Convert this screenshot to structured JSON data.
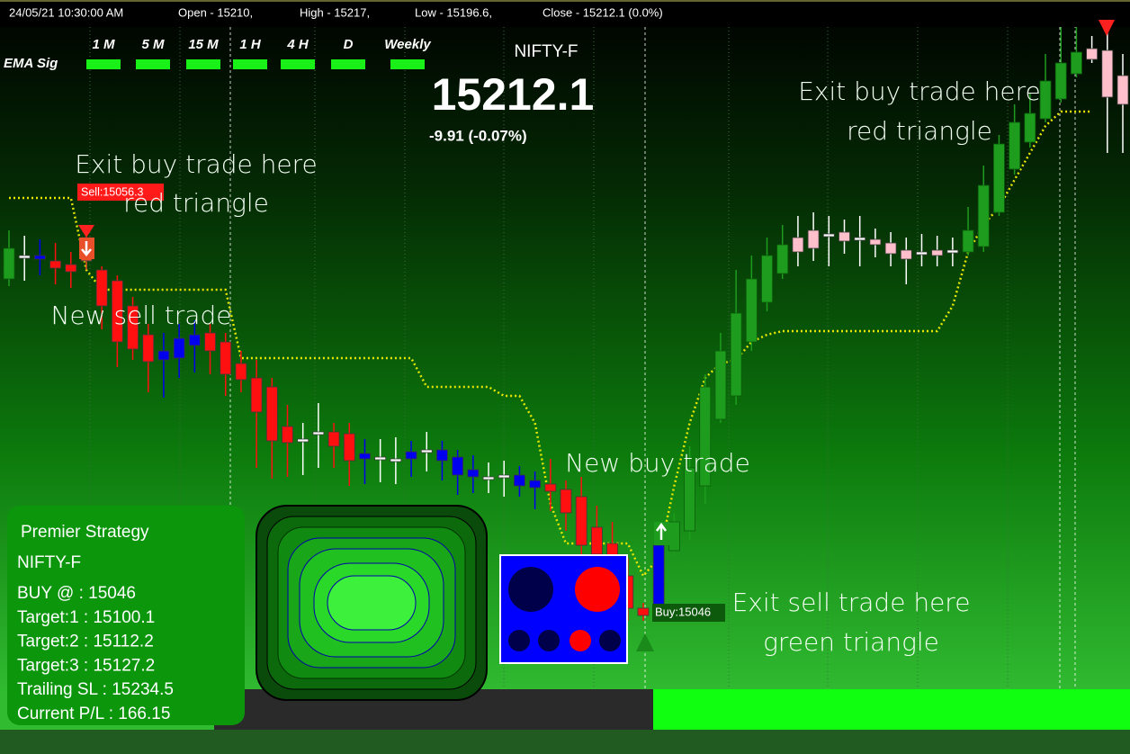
{
  "header": {
    "items": [
      "24/05/21 10:30:00 AM",
      "Open - 15210,",
      "High - 15217,",
      "Low - 15196.6,",
      "Close - 15212.1 (0.0%)"
    ]
  },
  "ema_signal": {
    "label": "EMA Sig",
    "timeframes": [
      "1 M",
      "5 M",
      "15 M",
      "1 H",
      "4 H",
      "D",
      "Weekly"
    ]
  },
  "quote": {
    "symbol": "NIFTY-F",
    "price": "15212.1",
    "change": "-9.91 (-0.07%)"
  },
  "annotations": [
    {
      "lines": [
        "Exit buy trade here",
        "red triangle"
      ]
    },
    {
      "lines": [
        "New sell trade"
      ]
    },
    {
      "lines": [
        "New buy trade"
      ]
    },
    {
      "lines": [
        "Exit sell trade here",
        "green triangle"
      ]
    },
    {
      "lines": [
        "Exit buy trade here",
        "red triangle"
      ]
    }
  ],
  "trade_labels": {
    "sell": "Sell:15056.3",
    "buy": "Buy:15046"
  },
  "strategy_panel": {
    "title": "Premier Strategy",
    "lines": [
      "NIFTY-F",
      "BUY @  : 15046",
      "Target:1 : 15100.1",
      "Target:2 : 15112.2",
      "Target:3 : 15127.2",
      "Trailing SL : 15234.5",
      "Current P/L : 166.15"
    ]
  },
  "chart_data": {
    "type": "candlestick",
    "ylim": [
      15020,
      15230
    ],
    "open": [
      15152.5,
      15158.5,
      15159,
      15157.5,
      15156.5,
      15164,
      15155,
      15152,
      15145,
      15137,
      15130,
      15130.5,
      15134,
      15137.5,
      15135,
      15129,
      15125,
      15122.5,
      15111.5,
      15107.5,
      15109.5,
      15110,
      15109.5,
      15102.5,
      15102.5,
      15102,
      15102.5,
      15104.5,
      15102,
      15098,
      15097.5,
      15097,
      15097.5,
      15095,
      15094.5,
      15095.5,
      15094,
      15092,
      15083.5,
      15079,
      15070,
      15061,
      15061,
      15077,
      15082.5,
      15095,
      15113.5,
      15120,
      15135,
      15146,
      15154,
      15164,
      15166,
      15164.5,
      15165.5,
      15163.5,
      15163.5,
      15162.5,
      15160.5,
      15159.5,
      15160.5,
      15160,
      15160,
      15161.5,
      15171,
      15183,
      15190.5,
      15197,
      15202.5,
      15209.5,
      15216.5,
      15216,
      15209
    ],
    "high": [
      15166,
      15164.5,
      15163.5,
      15162.5,
      15160,
      15167,
      15156,
      15153.5,
      15147.5,
      15140,
      15137.5,
      15140,
      15141,
      15140,
      15137.5,
      15132.5,
      15130,
      15125,
      15117.5,
      15112.5,
      15118,
      15112.5,
      15112.5,
      15108,
      15108,
      15108.5,
      15107.5,
      15110,
      15107.5,
      15105,
      15103.5,
      15101.5,
      15102,
      15100.5,
      15099,
      15102.5,
      15096.5,
      15097.5,
      15089.5,
      15085,
      15075,
      15062.5,
      15080,
      15087.5,
      15106,
      15126,
      15137.5,
      15155,
      15159,
      15164,
      15167.5,
      15170,
      15171,
      15170,
      15169,
      15170,
      15166.5,
      15165.5,
      15164,
      15165,
      15164.5,
      15164,
      15172.5,
      15184,
      15192.5,
      15201,
      15204,
      15215,
      15222.5,
      15225,
      15220,
      15222.5,
      15215
    ],
    "low": [
      15150.5,
      15152,
      15153.5,
      15151,
      15150,
      15155,
      15138.5,
      15128,
      15130,
      15121,
      15119.5,
      15125,
      15126.5,
      15126,
      15120,
      15121,
      15100,
      15097,
      15097.5,
      15098,
      15100,
      15100,
      15095,
      15095.5,
      15096,
      15095.5,
      15097.5,
      15099,
      15096.5,
      15092.5,
      15093,
      15093,
      15092,
      15092,
      15088.5,
      15088,
      15082.5,
      15075,
      15070,
      15065,
      15057.5,
      15057.5,
      15060,
      15075.5,
      15080,
      15090,
      15112.5,
      15117.5,
      15132.5,
      15143.5,
      15152.5,
      15156,
      15157.5,
      15156,
      15159.5,
      15156,
      15158.5,
      15156,
      15151,
      15156,
      15156,
      15156,
      15159,
      15160,
      15170,
      15181.5,
      15189,
      15196,
      15201.5,
      15208.5,
      15212.5,
      15187.5,
      15187.5
    ],
    "close": [
      15161,
      15159,
      15158,
      15155.5,
      15154.5,
      15157.5,
      15145,
      15135,
      15133,
      15129.5,
      15132.5,
      15136,
      15137,
      15132.5,
      15126,
      15124.5,
      15115.5,
      15107.5,
      15107,
      15108,
      15110,
      15106,
      15102,
      15104,
      15103,
      15102.5,
      15104.5,
      15105,
      15105,
      15103,
      15099.5,
      15097.5,
      15098,
      15098,
      15096.5,
      15093.5,
      15087.5,
      15078.5,
      15076,
      15070,
      15061,
      15059,
      15078.5,
      15085,
      15100,
      15122.5,
      15132.5,
      15143,
      15152.5,
      15159,
      15162,
      15160,
      15161,
      15165,
      15163,
      15164,
      15162,
      15159.5,
      15158,
      15160,
      15159,
      15160.5,
      15166,
      15178.5,
      15190,
      15196,
      15198.5,
      15207.5,
      15212.5,
      15215.5,
      15213.5,
      15203,
      15201
    ],
    "colors": [
      "#1e9c1e",
      "#ffffff",
      "#0000ee",
      "#ff1010",
      "#ff1010",
      "#e8502a",
      "#ff1010",
      "#ff1010",
      "#ff1010",
      "#ff1010",
      "#0000ee",
      "#0000ee",
      "#0000ee",
      "#ff1010",
      "#ff1010",
      "#ff1010",
      "#ff1010",
      "#ff1010",
      "#ff1010",
      "#ffffff",
      "#ffffff",
      "#ff1010",
      "#ff1010",
      "#0000ee",
      "#ffffff",
      "#ffffff",
      "#0000ee",
      "#ffffff",
      "#0000ee",
      "#0000ee",
      "#0000ee",
      "#ffffff",
      "#ffffff",
      "#0000ee",
      "#0000ee",
      "#ff1010",
      "#ff1010",
      "#ff1010",
      "#ff1010",
      "#ff1010",
      "#ff1010",
      "#ff1010",
      "#0000ee",
      "#1e9c1e",
      "#1e9c1e",
      "#1e9c1e",
      "#1e9c1e",
      "#1e9c1e",
      "#1e9c1e",
      "#1e9c1e",
      "#1e9c1e",
      "#ffc0cb",
      "#ffc0cb",
      "#ffffff",
      "#ffc0cb",
      "#ffffff",
      "#ffc0cb",
      "#ffc0cb",
      "#ffc0cb",
      "#ffffff",
      "#ffc0cb",
      "#ffffff",
      "#1e9c1e",
      "#1e9c1e",
      "#1e9c1e",
      "#1e9c1e",
      "#1e9c1e",
      "#1e9c1e",
      "#1e9c1e",
      "#1e9c1e",
      "#ffc0cb",
      "#ffc0cb",
      "#ffc0cb"
    ],
    "trailing_stop": {
      "color": "#e6e600",
      "values": [
        15175,
        15175,
        15175,
        15175,
        15175,
        15155,
        15149.5,
        15149.5,
        15149.5,
        15149.5,
        15149.5,
        15149.5,
        15149.5,
        15149.5,
        15149.5,
        15130.5,
        15130.5,
        15130.5,
        15130.5,
        15130.5,
        15130.5,
        15130.5,
        15130.5,
        15130.5,
        15130.5,
        15130.5,
        15130.5,
        15122.5,
        15122.5,
        15122.5,
        15122.5,
        15122.5,
        15120,
        15120,
        15112.5,
        15090,
        15079,
        15079,
        15079,
        15079,
        15079,
        15070,
        15075,
        15095,
        15112.5,
        15125,
        15129,
        15130,
        15135,
        15137,
        15138,
        15138,
        15138,
        15138,
        15138,
        15138,
        15138,
        15138,
        15138,
        15138,
        15138,
        15145,
        15160,
        15167.5,
        15172.5,
        15180,
        15187.5,
        15195,
        15199,
        15199,
        15199,
        null,
        null
      ]
    }
  }
}
